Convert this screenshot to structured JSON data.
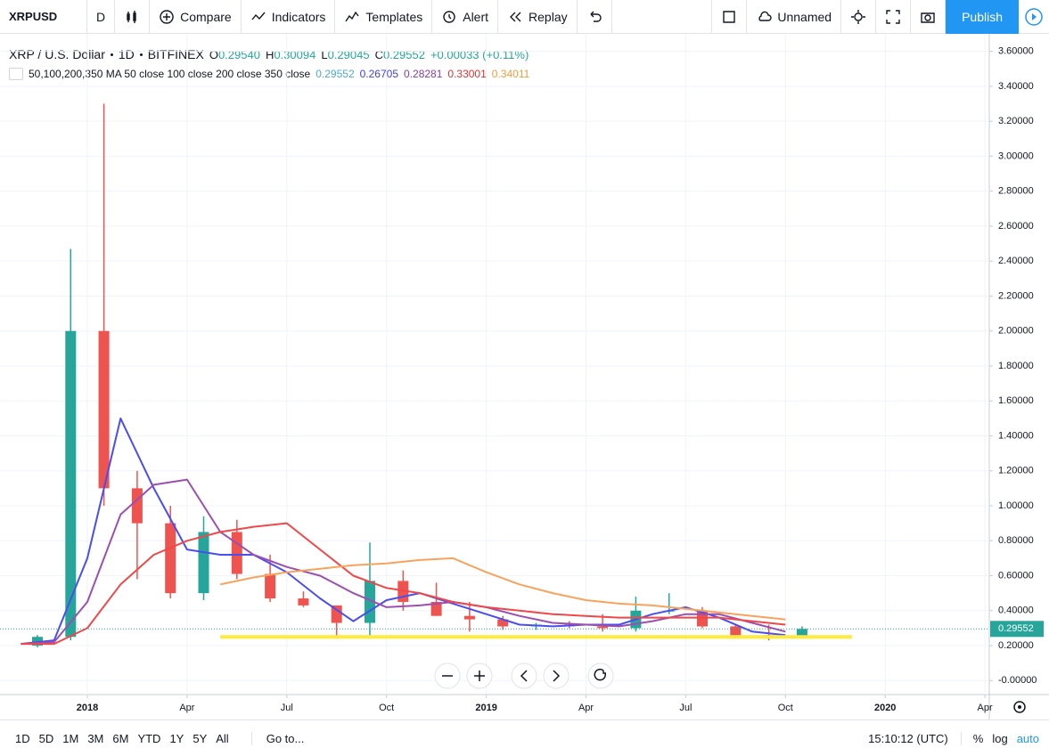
{
  "toolbar": {
    "symbol": "XRPUSD",
    "interval": "D",
    "buttons": [
      "Compare",
      "Indicators",
      "Templates",
      "Alert",
      "Replay"
    ],
    "layout_name": "Unnamed",
    "publish": "Publish"
  },
  "legend": {
    "title": "XRP / U.S. Dollar",
    "interval": "1D",
    "exchange": "BITFINEX",
    "ohlc": [
      {
        "label": "O",
        "value": "0.29540"
      },
      {
        "label": "H",
        "value": "0.30094"
      },
      {
        "label": "L",
        "value": "0.29045"
      },
      {
        "label": "C",
        "value": "0.29552"
      }
    ],
    "change": "+0.00033 (+0.11%)",
    "indicator": "50,100,200,350 MA 50 close 100 close 200 close 350 close",
    "indicator_values": [
      "0.29552",
      "0.26705",
      "0.28281",
      "0.33001",
      "0.34011"
    ]
  },
  "chart_data": {
    "type": "candlestick",
    "x": [
      "2017-11",
      "2017-12",
      "2018-01",
      "2018-02",
      "2018-03",
      "2018-04",
      "2018-05",
      "2018-06",
      "2018-07",
      "2018-08",
      "2018-09",
      "2018-10",
      "2018-11",
      "2018-12",
      "2019-01",
      "2019-02",
      "2019-03",
      "2019-04",
      "2019-05",
      "2019-06",
      "2019-07",
      "2019-08",
      "2019-09",
      "2019-10"
    ],
    "open": [
      0.2,
      0.25,
      2.0,
      1.1,
      0.9,
      0.5,
      0.85,
      0.61,
      0.47,
      0.43,
      0.33,
      0.57,
      0.45,
      0.37,
      0.35,
      0.31,
      0.32,
      0.31,
      0.3,
      0.4,
      0.4,
      0.31,
      0.26,
      0.25
    ],
    "high": [
      0.26,
      2.47,
      3.3,
      1.2,
      1.0,
      0.94,
      0.92,
      0.72,
      0.51,
      0.43,
      0.79,
      0.63,
      0.56,
      0.45,
      0.37,
      0.33,
      0.34,
      0.38,
      0.48,
      0.5,
      0.42,
      0.32,
      0.32,
      0.31
    ],
    "low": [
      0.19,
      0.23,
      1.0,
      0.58,
      0.47,
      0.46,
      0.58,
      0.45,
      0.42,
      0.25,
      0.25,
      0.4,
      0.37,
      0.28,
      0.29,
      0.29,
      0.3,
      0.28,
      0.28,
      0.38,
      0.3,
      0.25,
      0.23,
      0.24
    ],
    "close": [
      0.25,
      2.0,
      1.1,
      0.9,
      0.5,
      0.85,
      0.61,
      0.47,
      0.43,
      0.33,
      0.57,
      0.45,
      0.37,
      0.35,
      0.31,
      0.32,
      0.31,
      0.3,
      0.4,
      0.4,
      0.31,
      0.26,
      0.25,
      0.29552
    ],
    "up_color": "#26a69a",
    "down_color": "#ef5350",
    "overlays": [
      {
        "color": "#4a4ef0",
        "values": [
          0.21,
          0.23,
          0.7,
          1.5,
          1.1,
          0.75,
          0.72,
          0.72,
          0.62,
          0.47,
          0.34,
          0.46,
          0.5,
          0.44,
          0.38,
          0.32,
          0.31,
          0.32,
          0.32,
          0.38,
          0.42,
          0.36,
          0.28,
          0.26
        ]
      },
      {
        "color": "#9c4fb0",
        "values": [
          0.21,
          0.22,
          0.45,
          0.95,
          1.12,
          1.15,
          0.85,
          0.72,
          0.65,
          0.6,
          0.5,
          0.42,
          0.43,
          0.45,
          0.42,
          0.37,
          0.33,
          0.32,
          0.31,
          0.34,
          0.38,
          0.38,
          0.33,
          0.28
        ]
      },
      {
        "color": "#f04848",
        "values": [
          0.21,
          0.21,
          0.3,
          0.55,
          0.72,
          0.8,
          0.85,
          0.88,
          0.9,
          0.75,
          0.6,
          0.53,
          0.5,
          0.45,
          0.42,
          0.4,
          0.38,
          0.37,
          0.36,
          0.36,
          0.36,
          0.36,
          0.34,
          0.32
        ]
      },
      {
        "color": "#f7a35c",
        "values": [
          null,
          null,
          null,
          null,
          null,
          null,
          0.55,
          0.59,
          0.62,
          0.64,
          0.66,
          0.67,
          0.69,
          0.7,
          0.62,
          0.55,
          0.5,
          0.46,
          0.44,
          0.43,
          0.41,
          0.39,
          0.37,
          0.35
        ]
      }
    ],
    "support_line": {
      "value": 0.25,
      "from": "2018-05",
      "to": "2019-12",
      "color": "#ffeb3b"
    },
    "last_price": 0.29552,
    "ylim": [
      -0.08,
      3.7
    ],
    "yticks": [
      {
        "value": 0,
        "label": "-0.00000"
      },
      {
        "value": 0.2,
        "label": "0.20000"
      },
      {
        "value": 0.4,
        "label": "0.40000"
      },
      {
        "value": 0.6,
        "label": "0.60000"
      },
      {
        "value": 0.8,
        "label": "0.80000"
      },
      {
        "value": 1.0,
        "label": "1.00000"
      },
      {
        "value": 1.2,
        "label": "1.20000"
      },
      {
        "value": 1.4,
        "label": "1.40000"
      },
      {
        "value": 1.6,
        "label": "1.60000"
      },
      {
        "value": 1.8,
        "label": "1.80000"
      },
      {
        "value": 2.0,
        "label": "2.00000"
      },
      {
        "value": 2.2,
        "label": "2.20000"
      },
      {
        "value": 2.4,
        "label": "2.40000"
      },
      {
        "value": 2.6,
        "label": "2.60000"
      },
      {
        "value": 2.8,
        "label": "2.80000"
      },
      {
        "value": 3.0,
        "label": "3.00000"
      },
      {
        "value": 3.2,
        "label": "3.20000"
      },
      {
        "value": 3.4,
        "label": "3.40000"
      },
      {
        "value": 3.6,
        "label": "3.60000"
      }
    ],
    "xticks": [
      {
        "value": "2018-01",
        "label": "2018"
      },
      {
        "value": "2018-04",
        "label": "Apr"
      },
      {
        "value": "2018-07",
        "label": "Jul"
      },
      {
        "value": "2018-10",
        "label": "Oct"
      },
      {
        "value": "2019-01",
        "label": "2019"
      },
      {
        "value": "2019-04",
        "label": "Apr"
      },
      {
        "value": "2019-07",
        "label": "Jul"
      },
      {
        "value": "2019-10",
        "label": "Oct"
      },
      {
        "value": "2020-01",
        "label": "2020"
      },
      {
        "value": "2020-04",
        "label": "Apr"
      }
    ],
    "grid": true
  },
  "bottom_bar": {
    "ranges": [
      "1D",
      "5D",
      "1M",
      "3M",
      "6M",
      "YTD",
      "1Y",
      "5Y",
      "All"
    ],
    "goto": "Go to...",
    "time": "15:10:12 (UTC)",
    "percent": "%",
    "log": "log",
    "auto": "auto"
  }
}
